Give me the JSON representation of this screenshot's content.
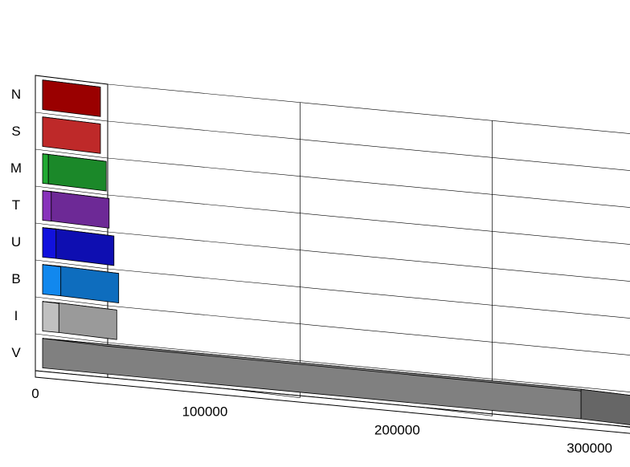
{
  "chart_data": {
    "type": "bar",
    "orientation": "horizontal",
    "style": "3d",
    "title": "",
    "xlabel": "",
    "ylabel": "",
    "categories": [
      "N",
      "S",
      "M",
      "T",
      "U",
      "B",
      "I",
      "V"
    ],
    "values": [
      0,
      0,
      3000,
      4500,
      7000,
      9500,
      8500,
      280000
    ],
    "colors": [
      "#c00000",
      "#ee3333",
      "#22aa33",
      "#8833bb",
      "#1111dd",
      "#1188ee",
      "#c0c0c0",
      "#808080"
    ],
    "xlim": [
      0,
      300000
    ],
    "xticks": [
      "0",
      "100000",
      "200000",
      "300000"
    ],
    "grid": true,
    "legend": "none"
  }
}
